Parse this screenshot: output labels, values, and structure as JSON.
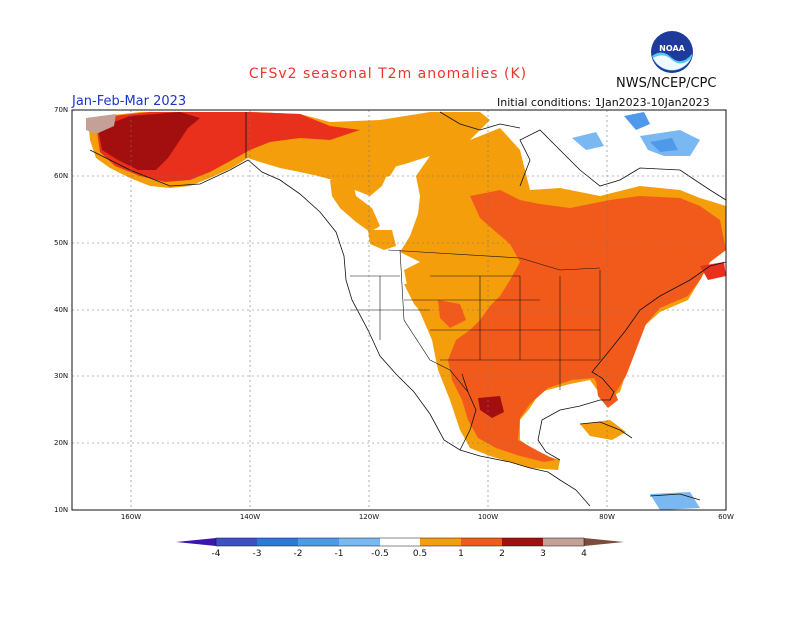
{
  "header": {
    "title": "CFSv2 seasonal T2m anomalies (K)",
    "agency": "NWS/NCEP/CPC",
    "period": "Jan-Feb-Mar 2023",
    "initial_conditions": "Initial conditions: 1Jan2023-10Jan2023",
    "logo_text": "NOAA"
  },
  "axes": {
    "lat_labels": [
      "70N",
      "60N",
      "50N",
      "40N",
      "30N",
      "20N",
      "10N"
    ],
    "lon_labels": [
      "160W",
      "140W",
      "120W",
      "100W",
      "80W",
      "60W"
    ]
  },
  "legend": {
    "ticks": [
      "-4",
      "-3",
      "-2",
      "-1",
      "-0.5",
      "0.5",
      "1",
      "2",
      "3",
      "4"
    ],
    "colors": [
      "#3a17a8",
      "#3c50c8",
      "#2d78da",
      "#4e99ea",
      "#7ab8f2",
      "#ffffff",
      "#f59e0b",
      "#f25a1c",
      "#e8301c",
      "#a30f0f",
      "#c5a096",
      "#7d4b3d"
    ]
  },
  "chart_data": {
    "type": "heatmap",
    "title": "CFSv2 seasonal T2m anomalies (K)",
    "lat_range": [
      10,
      70
    ],
    "lon_range": [
      -170,
      -60
    ],
    "color_levels": [
      -4,
      -3,
      -2,
      -1,
      -0.5,
      0.5,
      1,
      2,
      3,
      4
    ]
  }
}
